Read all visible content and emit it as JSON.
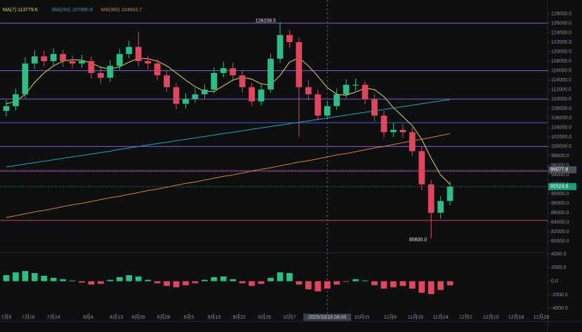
{
  "chart_data": {
    "type": "candlestick",
    "x": [
      0,
      3,
      6,
      9,
      12,
      15,
      18,
      21,
      24,
      27,
      30,
      33,
      36,
      39,
      42,
      45,
      48,
      51,
      54,
      57,
      60,
      63,
      66,
      69,
      72,
      75,
      78,
      81,
      84,
      87,
      90,
      93,
      96,
      99,
      102,
      105,
      108,
      111,
      114,
      117,
      120,
      123,
      126,
      129,
      132,
      135,
      138,
      141
    ],
    "open": [
      107500,
      108500,
      111000,
      117500,
      119000,
      118000,
      119500,
      118000,
      117500,
      118000,
      115500,
      114500,
      117000,
      119500,
      121000,
      118000,
      117500,
      115000,
      112500,
      109000,
      110000,
      111000,
      112000,
      115500,
      116500,
      115000,
      112500,
      109500,
      112000,
      118500,
      123500,
      122000,
      112500,
      111000,
      106500,
      108500,
      111000,
      113000,
      113000,
      110000,
      106500,
      103000,
      103500,
      103000,
      99000,
      92000,
      86000,
      88500
    ],
    "high": [
      109800,
      112200,
      118800,
      120300,
      120200,
      120700,
      120400,
      119200,
      119300,
      118900,
      116600,
      118200,
      120600,
      122300,
      124200,
      119100,
      118400,
      116000,
      113400,
      111200,
      112300,
      113100,
      116700,
      117900,
      117600,
      115900,
      113300,
      113200,
      119600,
      126208.5,
      124500,
      123000,
      114000,
      112000,
      109600,
      112200,
      114200,
      114300,
      113800,
      111000,
      107500,
      105000,
      104600,
      104000,
      100000,
      93000,
      89500,
      92600
    ],
    "low": [
      106300,
      107600,
      110200,
      116400,
      116900,
      117000,
      116800,
      116500,
      116600,
      114300,
      113300,
      113600,
      116200,
      118600,
      116900,
      116300,
      114000,
      111600,
      107800,
      108000,
      109200,
      110100,
      111200,
      114600,
      114100,
      111400,
      108600,
      108700,
      111300,
      117600,
      120800,
      102000,
      109800,
      105500,
      105800,
      107700,
      110200,
      111800,
      109000,
      105300,
      101800,
      102000,
      101900,
      98000,
      90800,
      80600,
      84800,
      87600
    ],
    "close": [
      108500,
      111000,
      117500,
      119000,
      118000,
      119500,
      118000,
      117500,
      118000,
      115500,
      114500,
      117000,
      119500,
      121000,
      118000,
      117500,
      115000,
      112500,
      109000,
      110000,
      111000,
      112000,
      115500,
      116500,
      115000,
      112500,
      109500,
      112000,
      118500,
      123500,
      122000,
      112500,
      111000,
      106500,
      108500,
      111000,
      113000,
      113000,
      110000,
      106500,
      103000,
      103500,
      103000,
      99000,
      92000,
      86000,
      88500,
      91524.9
    ],
    "up_color": "#2ebd85",
    "down_color": "#e0475c",
    "xlim": [
      -2,
      172
    ],
    "xticks": [
      {
        "value": 0,
        "label": "7月9"
      },
      {
        "value": 7,
        "label": "7月16"
      },
      {
        "value": 15,
        "label": "7月24"
      },
      {
        "value": 26,
        "label": "8月4"
      },
      {
        "value": 35,
        "label": "8月13"
      },
      {
        "value": 42,
        "label": "8月20"
      },
      {
        "value": 50,
        "label": "8月28"
      },
      {
        "value": 58,
        "label": "9月5"
      },
      {
        "value": 66,
        "label": "9月13"
      },
      {
        "value": 74,
        "label": "9月21"
      },
      {
        "value": 82,
        "label": "9月29"
      },
      {
        "value": 90,
        "label": "10月7"
      },
      {
        "value": 113,
        "label": "10月31"
      },
      {
        "value": 122,
        "label": "11月8"
      },
      {
        "value": 130,
        "label": "11月16"
      },
      {
        "value": 138,
        "label": "11月24"
      },
      {
        "value": 146,
        "label": "12月2"
      },
      {
        "value": 154,
        "label": "12月10"
      },
      {
        "value": 162,
        "label": "12月18"
      },
      {
        "value": 170,
        "label": "12月26"
      }
    ],
    "ylim": [
      77000,
      130000
    ],
    "yticks": [
      {
        "value": 80000,
        "label": "80000.0"
      },
      {
        "value": 82000,
        "label": "82000.0"
      },
      {
        "value": 84000,
        "label": "84000.0"
      },
      {
        "value": 86000,
        "label": "86000.0"
      },
      {
        "value": 88000,
        "label": "88000.0"
      },
      {
        "value": 90000,
        "label": "90000.0"
      },
      {
        "value": 92000,
        "label": "92000.0"
      },
      {
        "value": 94000,
        "label": "94000.0"
      },
      {
        "value": 96000,
        "label": "96000.0"
      },
      {
        "value": 98000,
        "label": "98000.0"
      },
      {
        "value": 100000,
        "label": "100000.0"
      },
      {
        "value": 102000,
        "label": "102000.0"
      },
      {
        "value": 104000,
        "label": "104000.0"
      },
      {
        "value": 106000,
        "label": "106000.0"
      },
      {
        "value": 108000,
        "label": "108000.0"
      },
      {
        "value": 110000,
        "label": "110000.0"
      },
      {
        "value": 112000,
        "label": "112000.0"
      },
      {
        "value": 114000,
        "label": "114000.0"
      },
      {
        "value": 116000,
        "label": "116000.0"
      },
      {
        "value": 118000,
        "label": "118000.0"
      },
      {
        "value": 120000,
        "label": "120000.0"
      },
      {
        "value": 122000,
        "label": "122000.0"
      },
      {
        "value": 124000,
        "label": "124000.0"
      },
      {
        "value": 126000,
        "label": "126000.0"
      },
      {
        "value": 128000,
        "label": "128000.0"
      }
    ],
    "series": [
      {
        "name": "MA(7) 113779.6",
        "color": "#e8d35a",
        "values": [
          109000,
          109500,
          111000,
          113500,
          115500,
          117000,
          118000,
          118300,
          118200,
          117600,
          116700,
          116300,
          116800,
          117800,
          118600,
          118500,
          118000,
          117000,
          115500,
          114000,
          112600,
          111600,
          111600,
          112800,
          114000,
          114600,
          114200,
          113200,
          113000,
          115000,
          117800,
          118700,
          117000,
          114800,
          112400,
          111000,
          110800,
          111500,
          112300,
          112000,
          110500,
          108200,
          106300,
          104400,
          101500,
          97500,
          94000,
          92000
        ]
      },
      {
        "name": "MA(200) 107690.8",
        "color": "#2aa3b8",
        "values": [
          95700,
          96000,
          96300,
          96600,
          96900,
          97200,
          97500,
          97800,
          98100,
          98400,
          98700,
          99000,
          99400,
          99700,
          100000,
          100300,
          100600,
          100900,
          101200,
          101500,
          101800,
          102100,
          102400,
          102700,
          103000,
          103300,
          103600,
          103900,
          104200,
          104500,
          104800,
          105100,
          105400,
          105700,
          106000,
          106300,
          106600,
          106900,
          107200,
          107500,
          107800,
          108100,
          108400,
          108700,
          109000,
          109300,
          109600,
          109900
        ]
      },
      {
        "name": "MA(360) 104663.7",
        "color": "#d9822b",
        "values": [
          85000,
          85400,
          85800,
          86200,
          86500,
          86900,
          87300,
          87700,
          88000,
          88400,
          88800,
          89200,
          89500,
          89900,
          90300,
          90700,
          91000,
          91400,
          91800,
          92200,
          92500,
          92900,
          93300,
          93700,
          94000,
          94400,
          94800,
          95200,
          95500,
          95900,
          96300,
          96700,
          97000,
          97400,
          97800,
          98200,
          98500,
          98900,
          99300,
          99700,
          100000,
          100400,
          100800,
          101200,
          101500,
          101900,
          102300,
          102700
        ]
      }
    ],
    "levels": [
      {
        "value": 126000,
        "color": "#8a5cd6"
      },
      {
        "value": 116000,
        "color": "#8a5cd6"
      },
      {
        "value": 110000,
        "color": "#8a5cd6"
      },
      {
        "value": 105000,
        "color": "#4a62d6"
      },
      {
        "value": 100000,
        "color": "#8a5cd6"
      },
      {
        "value": 94800,
        "color": "#b04fb8"
      },
      {
        "value": 84400,
        "color": "#c9485a"
      }
    ],
    "price_tags": [
      {
        "value": 95077.8,
        "color": "#4a4f57"
      },
      {
        "value": 91524.9,
        "color": "#1a9e77"
      }
    ],
    "high_label": "126208.5",
    "low_label": "80600.0",
    "crosshair": {
      "x": 102,
      "label": "2025/10/19 08:00"
    },
    "macd": {
      "values": [
        900,
        1300,
        1500,
        1200,
        800,
        500,
        300,
        100,
        -200,
        -500,
        -400,
        200,
        600,
        900,
        700,
        200,
        -300,
        -700,
        -900,
        -600,
        -300,
        200,
        600,
        700,
        300,
        -300,
        -700,
        -400,
        500,
        1300,
        1200,
        -500,
        -1200,
        -1500,
        -1100,
        -500,
        -100,
        300,
        100,
        -600,
        -1100,
        -900,
        -700,
        -1100,
        -1700,
        -1900,
        -1300,
        -600
      ],
      "ylim": [
        -4700,
        4000
      ],
      "yticks": [
        {
          "value": 4000,
          "label": "4000.0"
        },
        {
          "value": 2000,
          "label": "2000.0"
        },
        {
          "value": 0,
          "label": "0.0"
        },
        {
          "value": -2000,
          "label": "-2000.0"
        },
        {
          "value": -4000,
          "label": "-4000.0"
        }
      ]
    }
  }
}
